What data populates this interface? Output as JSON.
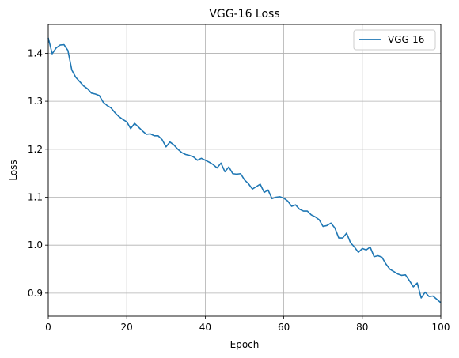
{
  "chart_data": {
    "type": "line",
    "title": "VGG-16 Loss",
    "xlabel": "Epoch",
    "ylabel": "Loss",
    "xlim": [
      0,
      100
    ],
    "ylim": [
      0.852,
      1.46
    ],
    "xticks": [
      0,
      20,
      40,
      60,
      80,
      100
    ],
    "yticks": [
      0.9,
      1.0,
      1.1,
      1.2,
      1.3,
      1.4
    ],
    "grid": true,
    "legend_position": "top-right",
    "colors": {
      "series": "#1f77b4",
      "grid": "#b0b0b0"
    },
    "series": [
      {
        "name": "VGG-16",
        "x": [
          0,
          1,
          2,
          3,
          4,
          5,
          6,
          7,
          8,
          9,
          10,
          11,
          12,
          13,
          14,
          15,
          16,
          17,
          18,
          19,
          20,
          21,
          22,
          23,
          24,
          25,
          26,
          27,
          28,
          29,
          30,
          31,
          32,
          33,
          34,
          35,
          36,
          37,
          38,
          39,
          40,
          41,
          42,
          43,
          44,
          45,
          46,
          47,
          48,
          49,
          50,
          51,
          52,
          53,
          54,
          55,
          56,
          57,
          58,
          59,
          60,
          61,
          62,
          63,
          64,
          65,
          66,
          67,
          68,
          69,
          70,
          71,
          72,
          73,
          74,
          75,
          76,
          77,
          78,
          79,
          80,
          81,
          82,
          83,
          84,
          85,
          86,
          87,
          88,
          89,
          90,
          91,
          92,
          93,
          94,
          95,
          96,
          97,
          98,
          99,
          100
        ],
        "values": [
          1.432,
          1.399,
          1.411,
          1.417,
          1.418,
          1.406,
          1.365,
          1.35,
          1.341,
          1.332,
          1.326,
          1.317,
          1.315,
          1.312,
          1.298,
          1.291,
          1.286,
          1.276,
          1.268,
          1.262,
          1.257,
          1.243,
          1.254,
          1.246,
          1.238,
          1.231,
          1.232,
          1.228,
          1.228,
          1.22,
          1.205,
          1.215,
          1.209,
          1.2,
          1.193,
          1.189,
          1.187,
          1.184,
          1.177,
          1.181,
          1.177,
          1.173,
          1.168,
          1.161,
          1.171,
          1.153,
          1.163,
          1.149,
          1.148,
          1.149,
          1.136,
          1.128,
          1.117,
          1.122,
          1.127,
          1.11,
          1.115,
          1.097,
          1.1,
          1.101,
          1.098,
          1.092,
          1.081,
          1.084,
          1.075,
          1.071,
          1.071,
          1.063,
          1.059,
          1.053,
          1.039,
          1.041,
          1.046,
          1.036,
          1.015,
          1.015,
          1.025,
          1.005,
          0.996,
          0.985,
          0.993,
          0.99,
          0.996,
          0.976,
          0.978,
          0.975,
          0.961,
          0.95,
          0.945,
          0.94,
          0.937,
          0.938,
          0.926,
          0.913,
          0.921,
          0.89,
          0.902,
          0.893,
          0.894,
          0.887,
          0.88
        ]
      }
    ]
  }
}
